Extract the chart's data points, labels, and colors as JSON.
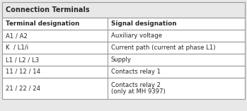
{
  "title": "Connection Terminals",
  "col1_header": "Terminal designation",
  "col2_header": "Signal designation",
  "rows": [
    [
      "A1 / A2",
      "Auxiliary voltage"
    ],
    [
      "K  / L1/i",
      "Current path (current at phase L1)"
    ],
    [
      "L1 / L2 / L3",
      "Supply"
    ],
    [
      "11 / 12 / 14",
      "Contacts relay 1"
    ],
    [
      "21 / 22 / 24",
      "Contacts relay 2\n(only at MH 9397)"
    ]
  ],
  "title_bg": "#e8e8e8",
  "row_bg": "#ffffff",
  "border_color": "#999999",
  "text_color": "#2a2a2a",
  "col_split": 0.435,
  "fig_bg": "#e8e8e8",
  "outer_border": "#888888",
  "title_fontsize": 7.0,
  "header_fontsize": 6.3,
  "data_fontsize": 6.1
}
